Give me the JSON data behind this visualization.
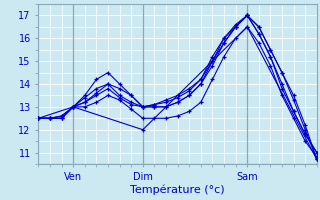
{
  "xlabel": "Température (°c)",
  "ylim": [
    10.5,
    17.5
  ],
  "xlim": [
    0,
    48
  ],
  "yticks": [
    11,
    12,
    13,
    14,
    15,
    16,
    17
  ],
  "xtick_positions": [
    6,
    18,
    36
  ],
  "xtick_labels": [
    "Ven",
    "Dim",
    "Sam"
  ],
  "vlines": [
    6,
    18,
    36
  ],
  "bg_color": "#cce8f0",
  "grid_color": "#ffffff",
  "line_color": "#0000cc",
  "lines": [
    {
      "x": [
        0,
        2,
        4,
        6,
        8,
        10,
        12,
        14,
        16,
        18,
        20,
        22,
        24,
        26,
        28,
        30,
        32,
        34,
        36,
        38,
        40,
        42,
        44,
        46,
        48
      ],
      "y": [
        12.5,
        12.5,
        12.6,
        13.0,
        13.4,
        13.8,
        14.0,
        13.8,
        13.5,
        13.0,
        13.1,
        13.3,
        13.5,
        13.8,
        14.2,
        15.0,
        15.8,
        16.5,
        17.0,
        16.5,
        15.5,
        14.5,
        13.5,
        12.2,
        10.7
      ]
    },
    {
      "x": [
        0,
        2,
        4,
        6,
        8,
        10,
        12,
        14,
        16,
        18,
        20,
        22,
        24,
        26,
        28,
        30,
        32,
        34,
        36,
        38,
        40,
        42,
        44,
        46,
        48
      ],
      "y": [
        12.5,
        12.5,
        12.6,
        13.0,
        13.5,
        14.2,
        14.5,
        14.0,
        13.5,
        13.0,
        13.1,
        13.2,
        13.4,
        13.7,
        14.2,
        15.2,
        16.0,
        16.6,
        17.0,
        16.5,
        15.5,
        14.5,
        13.3,
        12.0,
        10.7
      ]
    },
    {
      "x": [
        0,
        2,
        4,
        6,
        8,
        10,
        12,
        14,
        16,
        18,
        20,
        22,
        24,
        26,
        28,
        30,
        32,
        34,
        36,
        38,
        40,
        42,
        44,
        46,
        48
      ],
      "y": [
        12.5,
        12.5,
        12.5,
        13.0,
        13.2,
        13.5,
        13.8,
        13.4,
        13.1,
        13.0,
        13.0,
        13.0,
        13.2,
        13.5,
        14.0,
        14.8,
        15.8,
        16.5,
        17.0,
        16.2,
        15.2,
        13.8,
        12.8,
        11.8,
        11.0
      ]
    },
    {
      "x": [
        0,
        2,
        4,
        6,
        8,
        10,
        12,
        14,
        16,
        18,
        20,
        22,
        24,
        26,
        28,
        30,
        32,
        34,
        36,
        38,
        40,
        42,
        44,
        46,
        48
      ],
      "y": [
        12.5,
        12.5,
        12.5,
        13.0,
        13.2,
        13.6,
        14.0,
        13.5,
        13.2,
        13.0,
        13.0,
        13.0,
        13.2,
        13.5,
        14.0,
        15.0,
        16.0,
        16.5,
        17.0,
        16.2,
        15.2,
        14.0,
        12.8,
        11.8,
        11.0
      ]
    },
    {
      "x": [
        0,
        2,
        4,
        6,
        8,
        10,
        12,
        14,
        16,
        18,
        20,
        22,
        24,
        26,
        28,
        30,
        32,
        34,
        36,
        38,
        40,
        42,
        44,
        46,
        48
      ],
      "y": [
        12.5,
        12.5,
        12.5,
        13.0,
        13.0,
        13.2,
        13.5,
        13.3,
        12.9,
        12.5,
        12.5,
        12.5,
        12.6,
        12.8,
        13.2,
        14.2,
        15.2,
        16.0,
        16.5,
        15.8,
        14.8,
        13.5,
        12.5,
        11.5,
        10.8
      ]
    },
    {
      "x": [
        0,
        6,
        18,
        36,
        48
      ],
      "y": [
        12.5,
        13.0,
        12.0,
        16.5,
        10.7
      ]
    }
  ]
}
